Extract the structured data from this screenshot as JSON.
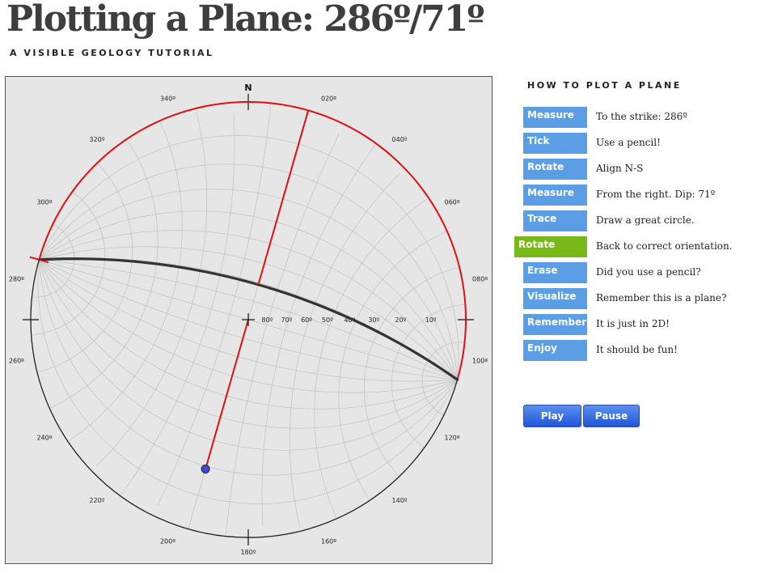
{
  "page": {
    "title": "Plotting a Plane: 286º/71º",
    "subtitle": "A VISIBLE GEOLOGY TUTORIAL"
  },
  "stereonet": {
    "north_label": "N",
    "strike_deg": 286,
    "dip_deg": 71,
    "rotation_deg": 74,
    "azimuth_labels": [
      "020º",
      "040º",
      "060º",
      "080º",
      "100º",
      "120º",
      "140º",
      "160º",
      "180º",
      "200º",
      "220º",
      "240º",
      "260º",
      "280º",
      "300º",
      "320º",
      "340º"
    ],
    "dip_scale_labels": [
      "80º",
      "70º",
      "60º",
      "50º",
      "40º",
      "30º",
      "20º",
      "10º"
    ],
    "colors": {
      "primitive": "#e01010",
      "great_circle": "#333333",
      "grid": "#c4c4c4",
      "pole": "#4444dd"
    }
  },
  "steps": {
    "heading": "HOW TO PLOT A PLANE",
    "items": [
      {
        "label": "Measure",
        "text": "To the strike: 286º",
        "active": false
      },
      {
        "label": "Tick",
        "text": "Use a pencil!",
        "active": false
      },
      {
        "label": "Rotate",
        "text": "Align N-S",
        "active": false
      },
      {
        "label": "Measure",
        "text": "From the right. Dip: 71º",
        "active": false
      },
      {
        "label": "Trace",
        "text": "Draw a great circle.",
        "active": false
      },
      {
        "label": "Rotate",
        "text": "Back to correct orientation.",
        "active": true
      },
      {
        "label": "Erase",
        "text": "Did you use a pencil?",
        "active": false
      },
      {
        "label": "Visualize",
        "text": "Remember this is a plane?",
        "active": false
      },
      {
        "label": "Remember",
        "text": "It is just in 2D!",
        "active": false
      },
      {
        "label": "Enjoy",
        "text": "It should be fun!",
        "active": false
      }
    ]
  },
  "controls": {
    "play_label": "Play",
    "pause_label": "Pause"
  }
}
